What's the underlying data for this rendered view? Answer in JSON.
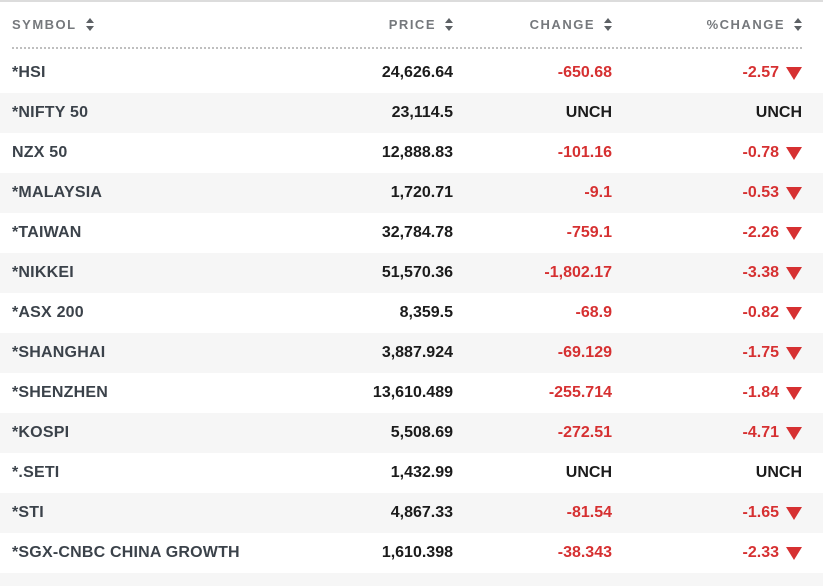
{
  "table": {
    "columns": [
      {
        "id": "symbol",
        "label": "SYMBOL"
      },
      {
        "id": "price",
        "label": "PRICE"
      },
      {
        "id": "change",
        "label": "CHANGE"
      },
      {
        "id": "pct_change",
        "label": "%CHANGE"
      }
    ],
    "rows": [
      {
        "symbol": "*HSI",
        "price": "24,626.64",
        "change": "-650.68",
        "pct_change": "-2.57",
        "direction": "down"
      },
      {
        "symbol": "*NIFTY 50",
        "price": "23,114.5",
        "change": "UNCH",
        "pct_change": "UNCH",
        "direction": "unch"
      },
      {
        "symbol": "NZX 50",
        "price": "12,888.83",
        "change": "-101.16",
        "pct_change": "-0.78",
        "direction": "down"
      },
      {
        "symbol": "*MALAYSIA",
        "price": "1,720.71",
        "change": "-9.1",
        "pct_change": "-0.53",
        "direction": "down"
      },
      {
        "symbol": "*TAIWAN",
        "price": "32,784.78",
        "change": "-759.1",
        "pct_change": "-2.26",
        "direction": "down"
      },
      {
        "symbol": "*NIKKEI",
        "price": "51,570.36",
        "change": "-1,802.17",
        "pct_change": "-3.38",
        "direction": "down"
      },
      {
        "symbol": "*ASX 200",
        "price": "8,359.5",
        "change": "-68.9",
        "pct_change": "-0.82",
        "direction": "down"
      },
      {
        "symbol": "*SHANGHAI",
        "price": "3,887.924",
        "change": "-69.129",
        "pct_change": "-1.75",
        "direction": "down"
      },
      {
        "symbol": "*SHENZHEN",
        "price": "13,610.489",
        "change": "-255.714",
        "pct_change": "-1.84",
        "direction": "down"
      },
      {
        "symbol": "*KOSPI",
        "price": "5,508.69",
        "change": "-272.51",
        "pct_change": "-4.71",
        "direction": "down"
      },
      {
        "symbol": "*.SETI",
        "price": "1,432.99",
        "change": "UNCH",
        "pct_change": "UNCH",
        "direction": "unch"
      },
      {
        "symbol": "*STI",
        "price": "4,867.33",
        "change": "-81.54",
        "pct_change": "-1.65",
        "direction": "down"
      },
      {
        "symbol": "*SGX-CNBC CHINA GROWTH",
        "price": "1,610.398",
        "change": "-38.343",
        "pct_change": "-2.33",
        "direction": "down"
      }
    ],
    "colors": {
      "negative_red": "#d63031",
      "stripe_gray": "#f6f6f6",
      "header_gray": "#75787c",
      "symbol_dark": "#3b424a",
      "value_black": "#1b1b1b"
    }
  }
}
